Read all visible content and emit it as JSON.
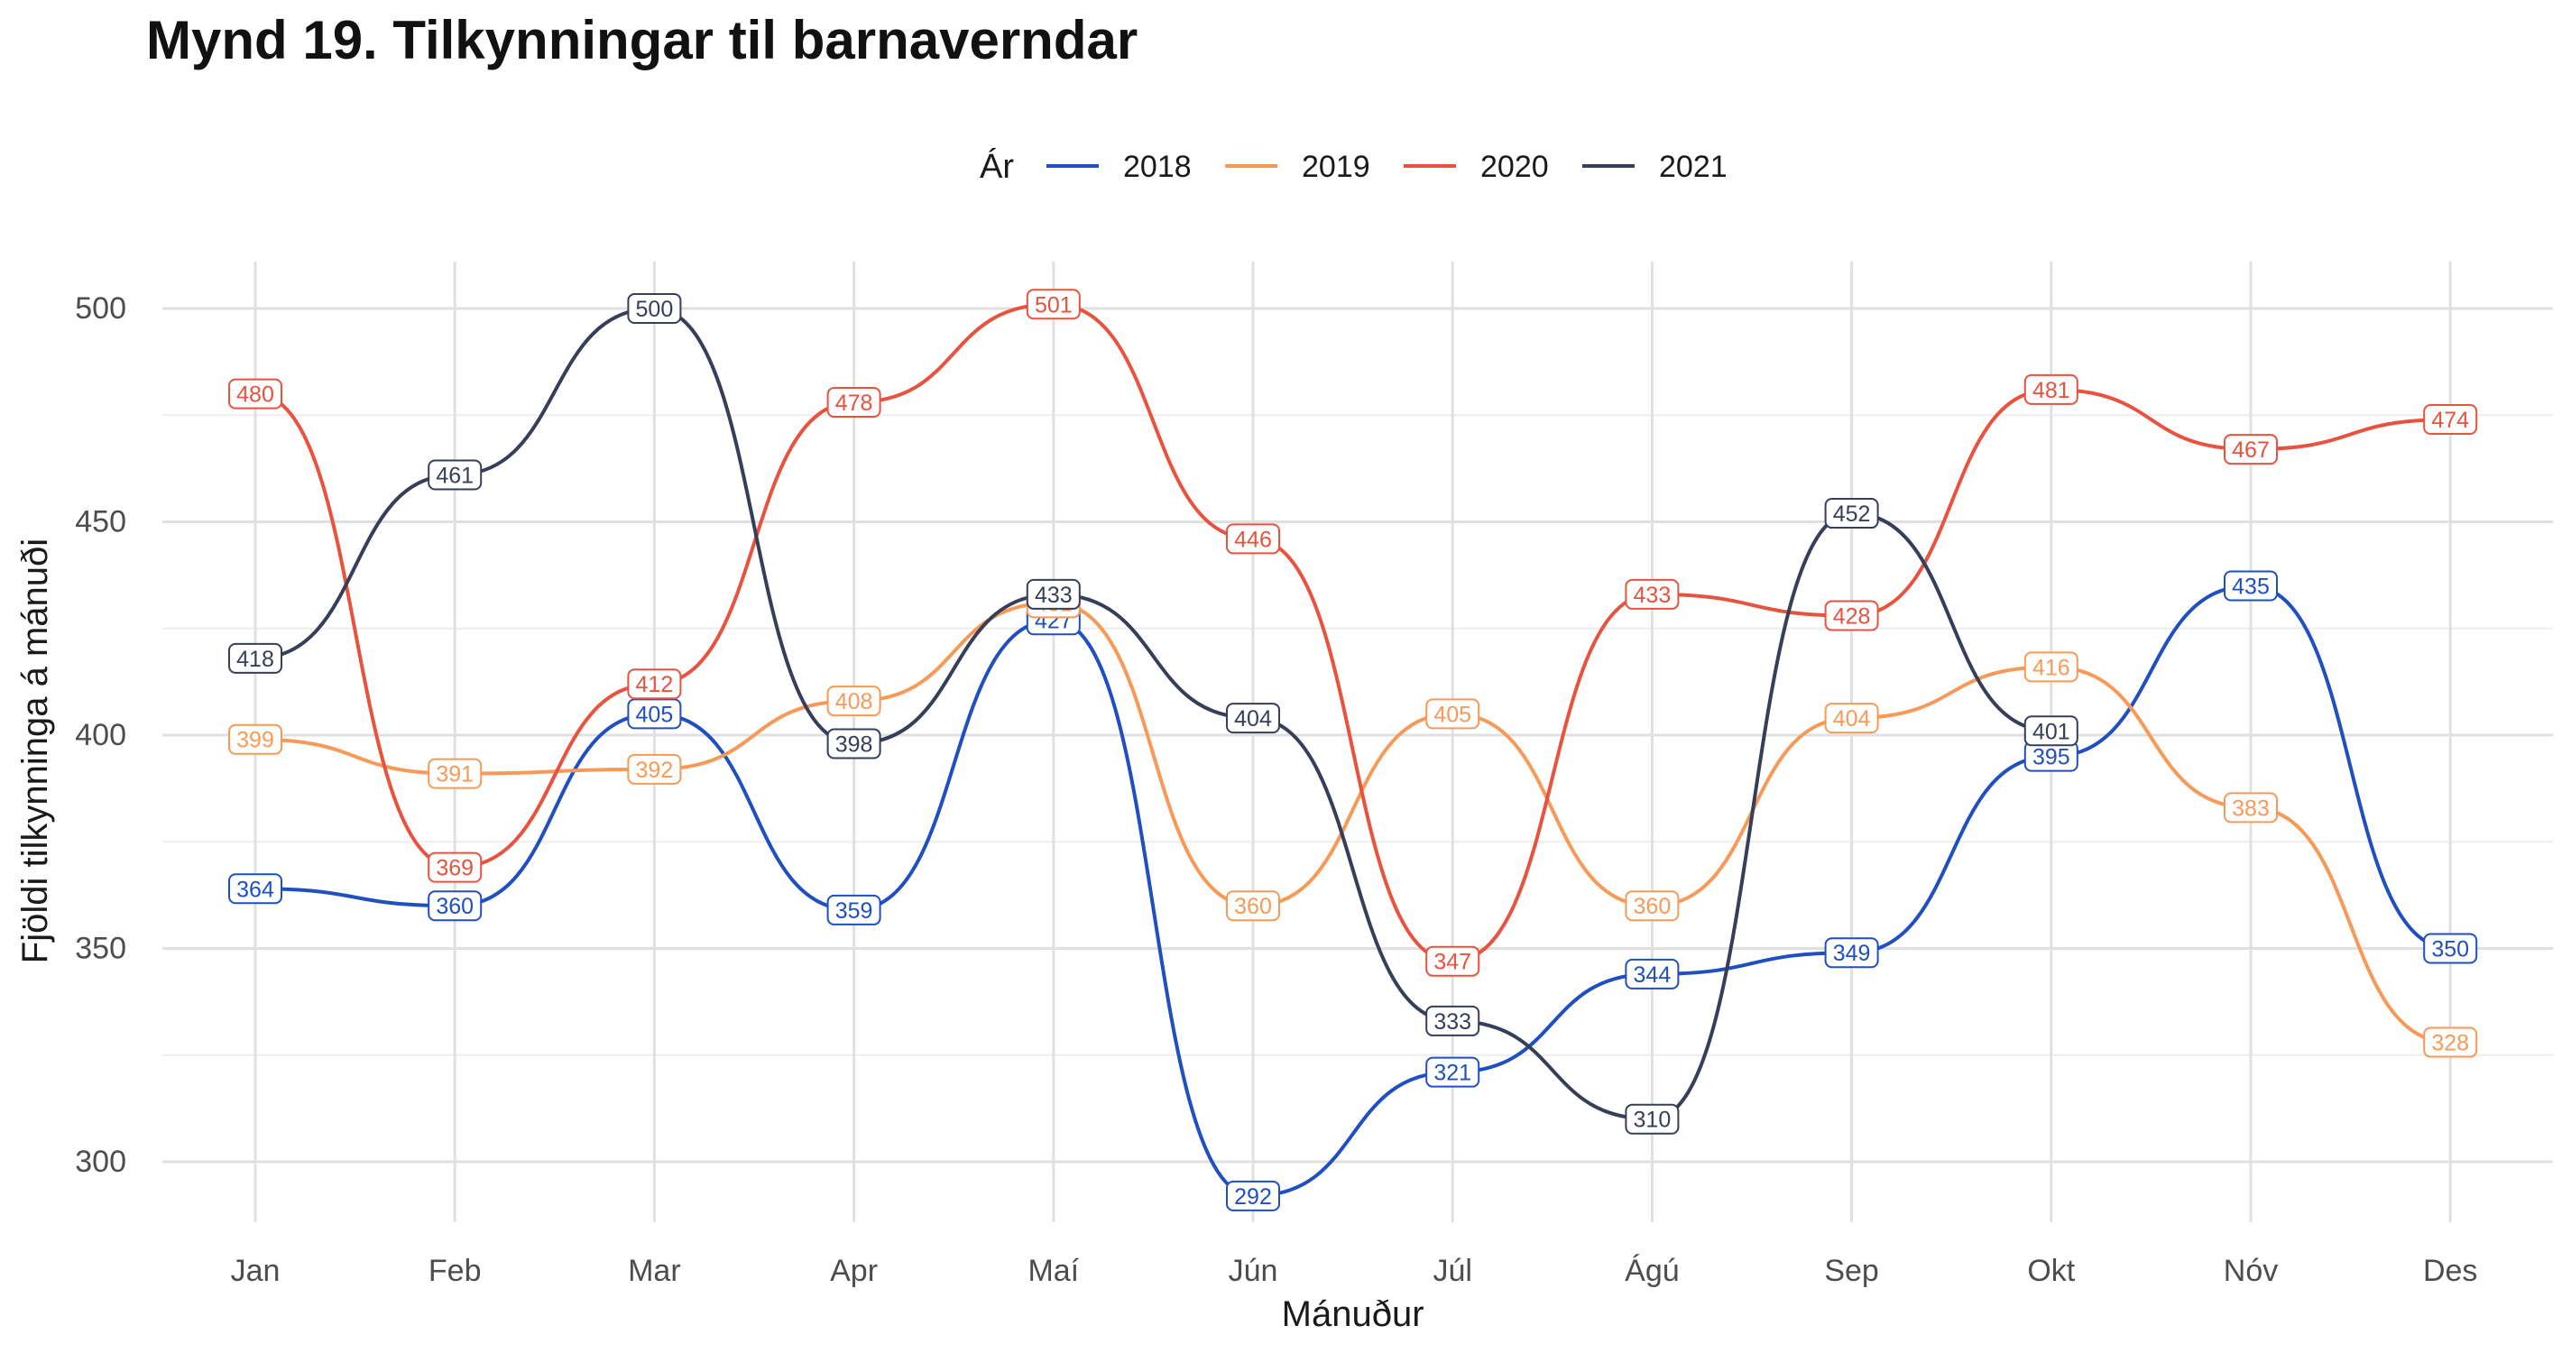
{
  "title": "Mynd 19. Tilkynningar til barnaverndar",
  "chart_data": {
    "type": "line",
    "title": "Mynd 19. Tilkynningar til barnaverndar",
    "xlabel": "Mánuður",
    "ylabel": "Fjöldi tilkynninga á mánuði",
    "legend_title": "Ár",
    "legend_position": "top",
    "categories": [
      "Jan",
      "Feb",
      "Mar",
      "Apr",
      "Maí",
      "Jún",
      "Júl",
      "Ágú",
      "Sep",
      "Okt",
      "Nóv",
      "Des"
    ],
    "ylim": [
      282,
      510
    ],
    "yticks": [
      300,
      350,
      400,
      450,
      500
    ],
    "grid": true,
    "series": [
      {
        "name": "2018",
        "color": "#1f4fc0",
        "values": [
          364,
          360,
          405,
          359,
          427,
          292,
          321,
          344,
          349,
          395,
          435,
          350
        ]
      },
      {
        "name": "2019",
        "color": "#f79a57",
        "values": [
          399,
          391,
          392,
          408,
          431,
          360,
          405,
          360,
          404,
          416,
          383,
          328
        ]
      },
      {
        "name": "2020",
        "color": "#e8523e",
        "values": [
          480,
          369,
          412,
          478,
          501,
          446,
          347,
          433,
          428,
          481,
          467,
          474
        ]
      },
      {
        "name": "2021",
        "color": "#363e5a",
        "values": [
          418,
          461,
          500,
          398,
          433,
          404,
          333,
          310,
          452,
          401,
          null,
          null
        ]
      }
    ]
  }
}
